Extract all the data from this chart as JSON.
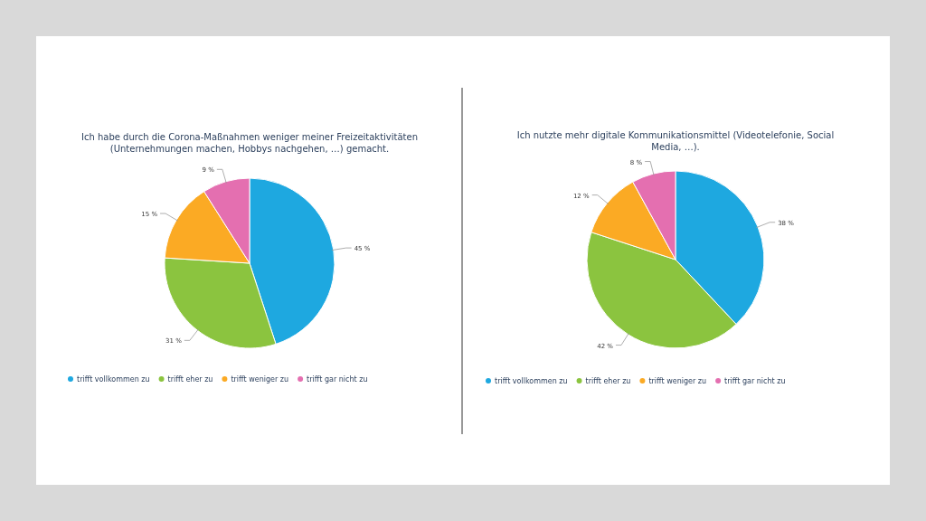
{
  "chart_data": [
    {
      "type": "pie",
      "title": "Ich habe durch die Corona-Maßnahmen weniger meiner Freizeitaktivitäten (Unternehmungen machen, Hobbys nachgehen, …) gemacht.",
      "categories": [
        "trifft vollkommen zu",
        "trifft eher zu",
        "trifft weniger zu",
        "trifft gar nicht zu"
      ],
      "values": [
        45,
        31,
        15,
        9
      ],
      "value_labels": [
        "45 %",
        "31 %",
        "15 %",
        "9 %"
      ],
      "colors": [
        "#1ea8e0",
        "#8bc43f",
        "#fbaa24",
        "#e46fb0"
      ],
      "legend": "bottom"
    },
    {
      "type": "pie",
      "title": "Ich nutzte mehr digitale Kommunikationsmittel (Videotelefonie, Social Media, …).",
      "categories": [
        "trifft vollkommen zu",
        "trifft eher zu",
        "trifft weniger zu",
        "trifft gar nicht zu"
      ],
      "values": [
        38,
        42,
        12,
        8
      ],
      "value_labels": [
        "38 %",
        "42 %",
        "12 %",
        "8 %"
      ],
      "colors": [
        "#1ea8e0",
        "#8bc43f",
        "#fbaa24",
        "#e46fb0"
      ],
      "legend": "bottom"
    }
  ]
}
